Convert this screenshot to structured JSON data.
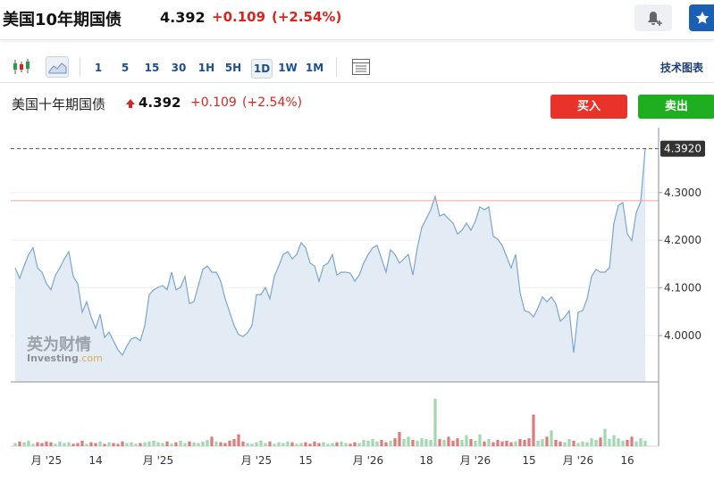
{
  "header": {
    "title": "美国10年期国债",
    "price": "4.392",
    "change": "+0.109",
    "change_pct": "(+2.54%)"
  },
  "toolbar": {
    "intervals": [
      "1",
      "5",
      "15",
      "30",
      "1H",
      "5H",
      "1D",
      "1W",
      "1M"
    ],
    "active": "1D",
    "indicators": "技术图表"
  },
  "chart_data": {
    "type": "line",
    "title": "美国十年期国债",
    "price": "4.392",
    "change": "+0.109",
    "change_pct": "(+2.54%)",
    "buy": "买入",
    "sell": "卖出",
    "watermark": {
      "cn": "英为财情",
      "brand": "Investing",
      "suffix": ".com"
    },
    "color": "#7ba6cf",
    "fill": "#e3ecf5",
    "up_color": "#9fd8b1",
    "down_color": "#e07a7a",
    "grid": true,
    "ylim": [
      3.9026,
      4.4363
    ],
    "yticks": [
      {
        "value": 4.0,
        "label": "4.0000"
      },
      {
        "value": 4.1,
        "label": "4.1000"
      },
      {
        "value": 4.2,
        "label": "4.2000"
      },
      {
        "value": 4.3,
        "label": "4.3000"
      }
    ],
    "prev_close": 4.283,
    "last_label": "4.3920",
    "categories": [
      null,
      null,
      null,
      null,
      null,
      null,
      null,
      "月 '25",
      null,
      null,
      null,
      null,
      null,
      null,
      null,
      null,
      null,
      null,
      "14",
      null,
      null,
      null,
      null,
      null,
      null,
      null,
      null,
      null,
      null,
      null,
      null,
      null,
      "月 '25",
      null,
      null,
      null,
      null,
      null,
      null,
      null,
      null,
      null,
      null,
      null,
      null,
      null,
      null,
      null,
      null,
      null,
      null,
      null,
      null,
      null,
      "月 '25",
      null,
      null,
      null,
      null,
      null,
      null,
      null,
      null,
      null,
      null,
      "15",
      null,
      null,
      null,
      null,
      null,
      null,
      null,
      null,
      null,
      null,
      null,
      null,
      null,
      "月 '26",
      null,
      null,
      null,
      null,
      null,
      null,
      null,
      null,
      null,
      null,
      null,
      null,
      "18",
      null,
      null,
      null,
      null,
      null,
      null,
      null,
      null,
      null,
      null,
      "月 '26",
      null,
      null,
      null,
      null,
      null,
      null,
      null,
      null,
      null,
      null,
      null,
      "15",
      null,
      null,
      null,
      null,
      null,
      null,
      null,
      null,
      null,
      null,
      "月 '26",
      null,
      null,
      null,
      null,
      null,
      null,
      null,
      null,
      null,
      null,
      "16",
      null,
      null,
      null,
      null
    ],
    "values": [
      4.142,
      4.12,
      4.146,
      4.17,
      4.184,
      4.142,
      4.133,
      4.109,
      4.096,
      4.127,
      4.142,
      4.161,
      4.176,
      4.124,
      4.109,
      4.049,
      4.071,
      4.039,
      4.015,
      4.045,
      3.996,
      4.007,
      3.989,
      3.97,
      3.959,
      3.978,
      3.993,
      3.996,
      3.989,
      4.021,
      4.086,
      4.096,
      4.101,
      4.105,
      4.096,
      4.133,
      4.096,
      4.101,
      4.124,
      4.067,
      4.071,
      4.105,
      4.139,
      4.146,
      4.133,
      4.133,
      4.114,
      4.077,
      4.049,
      4.021,
      4.002,
      3.998,
      4.006,
      4.021,
      4.086,
      4.086,
      4.101,
      4.077,
      4.124,
      4.146,
      4.17,
      4.176,
      4.161,
      4.17,
      4.195,
      4.184,
      4.152,
      4.146,
      4.114,
      4.146,
      4.152,
      4.17,
      4.127,
      4.133,
      4.133,
      4.131,
      4.114,
      4.127,
      4.152,
      4.17,
      4.184,
      4.189,
      4.161,
      4.133,
      4.18,
      4.17,
      4.152,
      4.161,
      4.17,
      4.127,
      4.184,
      4.227,
      4.245,
      4.264,
      4.292,
      4.251,
      4.255,
      4.245,
      4.236,
      4.213,
      4.221,
      4.236,
      4.221,
      4.24,
      4.27,
      4.264,
      4.27,
      4.208,
      4.202,
      4.189,
      4.165,
      4.142,
      4.17,
      4.09,
      4.052,
      4.049,
      4.039,
      4.058,
      4.081,
      4.071,
      4.081,
      4.067,
      4.03,
      4.039,
      4.052,
      3.964,
      4.049,
      4.052,
      4.077,
      4.124,
      4.139,
      4.133,
      4.133,
      4.142,
      4.236,
      4.273,
      4.279,
      4.213,
      4.199,
      4.258,
      4.281,
      4.392
    ],
    "vlim": [
      0,
      70
    ],
    "volume": [
      4,
      6,
      5,
      7,
      3,
      5,
      4,
      6,
      5,
      3,
      6,
      4,
      5,
      3,
      4,
      7,
      3,
      5,
      4,
      6,
      3,
      5,
      4,
      3,
      6,
      4,
      5,
      3,
      4,
      5,
      6,
      7,
      5,
      4,
      6,
      3,
      5,
      7,
      4,
      6,
      5,
      4,
      6,
      8,
      12,
      6,
      5,
      4,
      7,
      9,
      15,
      6,
      4,
      3,
      5,
      7,
      4,
      6,
      3,
      5,
      4,
      6,
      5,
      3,
      4,
      5,
      3,
      6,
      4,
      5,
      3,
      4,
      5,
      6,
      4,
      3,
      5,
      4,
      8,
      7,
      9,
      6,
      8,
      5,
      7,
      10,
      18,
      9,
      12,
      8,
      7,
      10,
      9,
      8,
      60,
      9,
      8,
      12,
      7,
      10,
      8,
      14,
      9,
      7,
      15,
      6,
      9,
      5,
      8,
      6,
      7,
      5,
      6,
      9,
      8,
      10,
      40,
      7,
      9,
      12,
      20,
      8,
      6,
      5,
      9,
      7,
      4,
      6,
      5,
      10,
      8,
      11,
      22,
      9,
      14,
      10,
      7,
      8,
      12,
      6,
      10,
      7
    ]
  }
}
